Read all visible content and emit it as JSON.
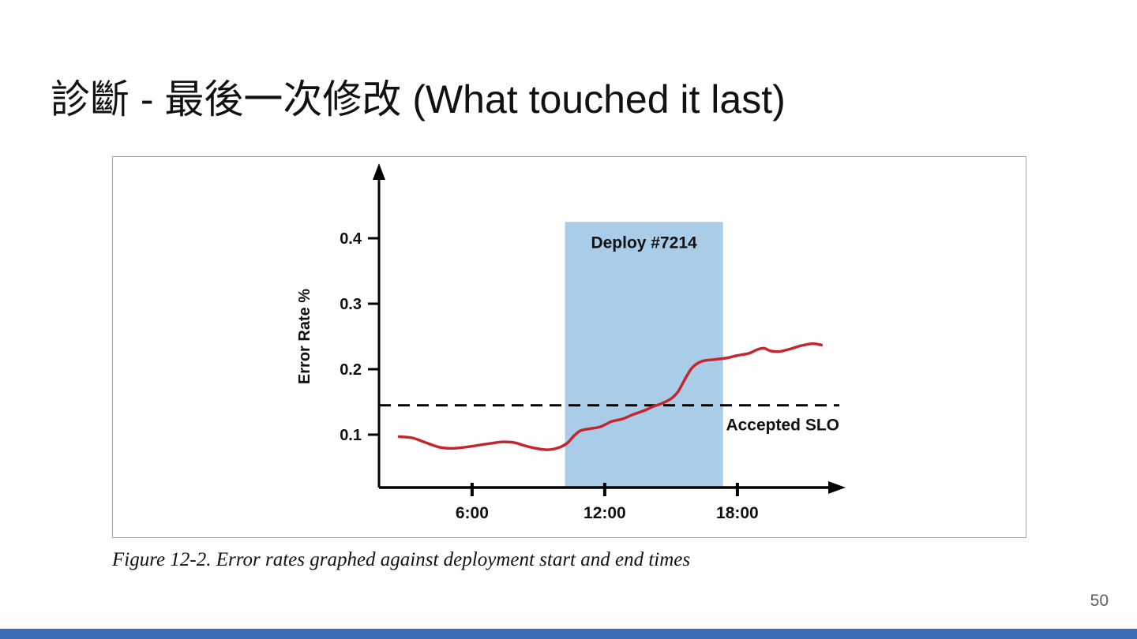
{
  "slide": {
    "title": "診斷 - 最後一次修改 (What touched it last)",
    "caption": "Figure 12-2. Error rates graphed against deployment start and end times",
    "page_number": "50",
    "accent_color": "#3e6db6"
  },
  "chart_data": {
    "type": "line",
    "title": "",
    "xlabel": "",
    "ylabel": "Error Rate %",
    "xlim": [
      1.8,
      23
    ],
    "ylim": [
      0,
      0.47
    ],
    "grid": false,
    "legend": "none",
    "y_ticks": [
      0.1,
      0.2,
      0.3,
      0.4
    ],
    "x_ticks": [
      {
        "label": "6:00",
        "hour": 6
      },
      {
        "label": "12:00",
        "hour": 12
      },
      {
        "label": "18:00",
        "hour": 18
      }
    ],
    "slo": {
      "label": "Accepted SLO",
      "value": 0.145,
      "style": "dashed"
    },
    "deploy_window": {
      "label": "Deploy #7214",
      "x_start": 10.2,
      "x_end": 17.35,
      "y_top": 0.425,
      "color": "#a9cde9"
    },
    "series": [
      {
        "name": "Error rate",
        "color": "#c5262c",
        "points": [
          [
            2.7,
            0.097
          ],
          [
            3.3,
            0.095
          ],
          [
            3.9,
            0.088
          ],
          [
            4.5,
            0.081
          ],
          [
            5.1,
            0.079
          ],
          [
            5.7,
            0.081
          ],
          [
            6.3,
            0.084
          ],
          [
            6.9,
            0.087
          ],
          [
            7.4,
            0.089
          ],
          [
            7.9,
            0.088
          ],
          [
            8.4,
            0.083
          ],
          [
            8.9,
            0.079
          ],
          [
            9.4,
            0.077
          ],
          [
            9.9,
            0.08
          ],
          [
            10.3,
            0.087
          ],
          [
            10.6,
            0.098
          ],
          [
            10.9,
            0.106
          ],
          [
            11.3,
            0.109
          ],
          [
            11.8,
            0.112
          ],
          [
            12.3,
            0.12
          ],
          [
            12.8,
            0.124
          ],
          [
            13.3,
            0.131
          ],
          [
            13.8,
            0.137
          ],
          [
            14.2,
            0.143
          ],
          [
            14.6,
            0.148
          ],
          [
            15.0,
            0.155
          ],
          [
            15.3,
            0.165
          ],
          [
            15.6,
            0.183
          ],
          [
            15.9,
            0.2
          ],
          [
            16.2,
            0.209
          ],
          [
            16.5,
            0.213
          ],
          [
            17.0,
            0.215
          ],
          [
            17.5,
            0.217
          ],
          [
            18.0,
            0.221
          ],
          [
            18.5,
            0.224
          ],
          [
            18.9,
            0.23
          ],
          [
            19.2,
            0.232
          ],
          [
            19.5,
            0.228
          ],
          [
            19.9,
            0.227
          ],
          [
            20.4,
            0.231
          ],
          [
            20.9,
            0.236
          ],
          [
            21.4,
            0.239
          ],
          [
            21.8,
            0.237
          ]
        ]
      }
    ]
  }
}
